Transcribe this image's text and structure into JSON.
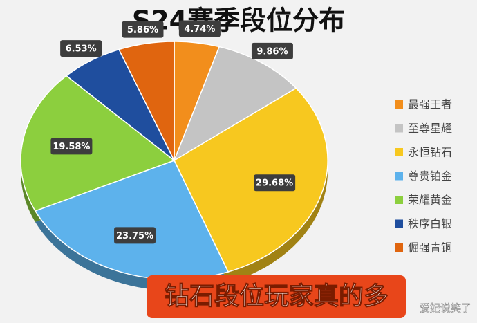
{
  "chart_data": {
    "type": "pie",
    "title": "S24赛季段位分布",
    "categories": [
      "最强王者",
      "至尊星耀",
      "永恒钻石",
      "尊贵铂金",
      "荣耀黄金",
      "秩序白银",
      "倔强青铜"
    ],
    "values": [
      4.74,
      9.86,
      29.68,
      23.75,
      19.58,
      6.53,
      5.86
    ],
    "value_labels": [
      "4.74%",
      "9.86%",
      "29.68%",
      "23.75%",
      "19.58%",
      "6.53%",
      "5.86%"
    ],
    "colors": [
      "#f28e1c",
      "#c4c4c4",
      "#f7c81f",
      "#5db2ec",
      "#8ccf3e",
      "#1f4e9e",
      "#e0650f"
    ],
    "legend": "right",
    "annotations": [
      "钻石段位玩家真的多",
      "爱妃说笑了"
    ]
  }
}
